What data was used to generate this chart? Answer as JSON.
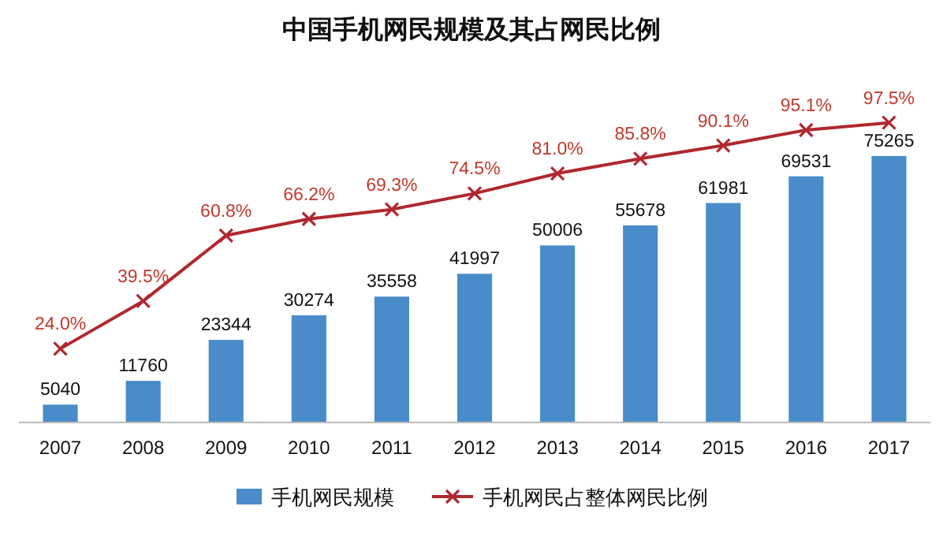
{
  "chart_data": {
    "type": "bar",
    "title": "中国手机网民规模及其占网民比例",
    "categories": [
      "2007",
      "2008",
      "2009",
      "2010",
      "2011",
      "2012",
      "2013",
      "2014",
      "2015",
      "2016",
      "2017"
    ],
    "series": [
      {
        "name": "手机网民规模",
        "color": "#4a8cc9",
        "values": [
          5040,
          11760,
          23344,
          30274,
          35558,
          41997,
          50006,
          55678,
          61981,
          69531,
          75265
        ]
      },
      {
        "name": "手机网民占整体网民比例",
        "type": "line",
        "axis": "y2",
        "color": "#b0282e",
        "values": [
          24.0,
          39.5,
          60.8,
          66.2,
          69.3,
          74.5,
          81.0,
          85.8,
          90.1,
          95.1,
          97.5
        ],
        "value_labels": [
          "24.0%",
          "39.5%",
          "60.8%",
          "66.2%",
          "69.3%",
          "74.5%",
          "81.0%",
          "85.8%",
          "90.1%",
          "95.1%",
          "97.5%"
        ]
      }
    ],
    "marker": "cross",
    "data_labels": true,
    "legend": "bottom",
    "grid": false
  }
}
